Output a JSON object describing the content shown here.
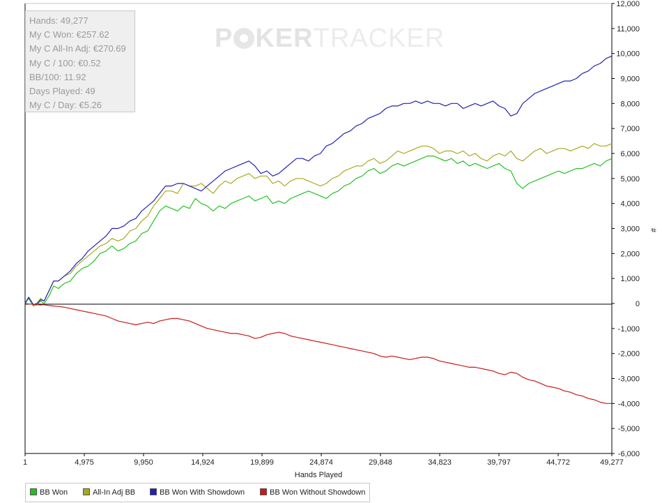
{
  "stats": {
    "hands": "Hands: 49,277",
    "my_c_won": "My C Won: €257.62",
    "my_c_allin_adj": "My C All-In Adj: €270.69",
    "my_c_per_100": "My C / 100: €0.52",
    "bb_per_100": "BB/100: 11.92",
    "days_played": "Days Played: 49",
    "my_c_per_day": "My C / Day: €5.26"
  },
  "watermark": {
    "part1": "P",
    "part2": "KER",
    "part3": "TRACKER"
  },
  "chart_data": {
    "type": "line",
    "title": "",
    "xlabel": "Hands Played",
    "ylabel": "#",
    "xlim": [
      1,
      49277
    ],
    "ylim": [
      -6000,
      12000
    ],
    "x_ticks": [
      "1",
      "4,975",
      "9,950",
      "14,924",
      "19,899",
      "24,874",
      "29,848",
      "34,823",
      "39,797",
      "44,772",
      "49,277"
    ],
    "x_tick_values": [
      1,
      4975,
      9950,
      14924,
      19899,
      24874,
      29848,
      34823,
      39797,
      44772,
      49277
    ],
    "y_ticks": [
      "12,000",
      "11,000",
      "10,000",
      "9,000",
      "8,000",
      "7,000",
      "6,000",
      "5,000",
      "4,000",
      "3,000",
      "2,000",
      "1,000",
      "0",
      "-1,000",
      "-2,000",
      "-3,000",
      "-4,000",
      "-5,000",
      "-6,000"
    ],
    "y_tick_values": [
      12000,
      11000,
      10000,
      9000,
      8000,
      7000,
      6000,
      5000,
      4000,
      3000,
      2000,
      1000,
      0,
      -1000,
      -2000,
      -3000,
      -4000,
      -5000,
      -6000
    ],
    "grid": false,
    "legend_position": "bottom-left",
    "series": [
      {
        "name": "BB Won",
        "color": "#22c022",
        "x": [
          1,
          300,
          700,
          1000,
          1300,
          1600,
          2000,
          2400,
          2800,
          3300,
          3800,
          4300,
          4800,
          5300,
          5800,
          6300,
          6800,
          7300,
          7800,
          8300,
          8800,
          9300,
          9800,
          10300,
          10800,
          11300,
          11800,
          12300,
          12800,
          13300,
          13800,
          14300,
          14800,
          15300,
          15800,
          16300,
          16800,
          17300,
          17800,
          18300,
          18800,
          19300,
          19800,
          20300,
          20800,
          21300,
          21800,
          22300,
          22800,
          23300,
          23800,
          24300,
          24800,
          25300,
          25800,
          26300,
          26800,
          27300,
          27800,
          28300,
          28800,
          29300,
          29800,
          30300,
          30800,
          31300,
          31800,
          32300,
          32800,
          33300,
          33800,
          34300,
          34800,
          35300,
          35800,
          36300,
          36800,
          37300,
          37800,
          38300,
          38800,
          39300,
          39800,
          40300,
          40800,
          41300,
          41800,
          42300,
          42800,
          43300,
          43800,
          44300,
          44800,
          45300,
          45800,
          46300,
          46800,
          47300,
          47800,
          48300,
          48800,
          49277
        ],
        "values": [
          0,
          200,
          -100,
          -50,
          100,
          0,
          300,
          700,
          600,
          800,
          900,
          1200,
          1400,
          1500,
          1700,
          2000,
          2100,
          2300,
          2100,
          2200,
          2400,
          2500,
          2800,
          2900,
          3300,
          3700,
          3900,
          3800,
          3700,
          3900,
          3800,
          4200,
          4000,
          3900,
          3700,
          3900,
          3800,
          4000,
          4100,
          4200,
          4300,
          4100,
          4200,
          4300,
          4000,
          4100,
          4000,
          4200,
          4300,
          4400,
          4500,
          4400,
          4300,
          4200,
          4400,
          4500,
          4700,
          4800,
          5000,
          5100,
          5300,
          5400,
          5200,
          5300,
          5500,
          5600,
          5500,
          5600,
          5700,
          5800,
          5900,
          5900,
          5800,
          5700,
          5800,
          5600,
          5700,
          5500,
          5600,
          5500,
          5400,
          5500,
          5600,
          5400,
          5300,
          4800,
          4600,
          4800,
          4900,
          5000,
          5100,
          5200,
          5300,
          5200,
          5300,
          5400,
          5400,
          5500,
          5600,
          5500,
          5700,
          5800
        ]
      },
      {
        "name": "All-In Adj BB",
        "color": "#a8a820",
        "x": [
          1,
          300,
          700,
          1000,
          1300,
          1600,
          2000,
          2400,
          2800,
          3300,
          3800,
          4300,
          4800,
          5300,
          5800,
          6300,
          6800,
          7300,
          7800,
          8300,
          8800,
          9300,
          9800,
          10300,
          10800,
          11300,
          11800,
          12300,
          12800,
          13300,
          13800,
          14300,
          14800,
          15300,
          15800,
          16300,
          16800,
          17300,
          17800,
          18300,
          18800,
          19300,
          19800,
          20300,
          20800,
          21300,
          21800,
          22300,
          22800,
          23300,
          23800,
          24300,
          24800,
          25300,
          25800,
          26300,
          26800,
          27300,
          27800,
          28300,
          28800,
          29300,
          29800,
          30300,
          30800,
          31300,
          31800,
          32300,
          32800,
          33300,
          33800,
          34300,
          34800,
          35300,
          35800,
          36300,
          36800,
          37300,
          37800,
          38300,
          38800,
          39300,
          39800,
          40300,
          40800,
          41300,
          41800,
          42300,
          42800,
          43300,
          43800,
          44300,
          44800,
          45300,
          45800,
          46300,
          46800,
          47300,
          47800,
          48300,
          48800,
          49277
        ],
        "values": [
          0,
          250,
          -50,
          0,
          200,
          100,
          500,
          900,
          900,
          1100,
          1200,
          1500,
          1700,
          1900,
          2100,
          2300,
          2400,
          2600,
          2500,
          2600,
          2900,
          3000,
          3300,
          3500,
          3900,
          4200,
          4500,
          4500,
          4400,
          4800,
          4700,
          4700,
          4800,
          4600,
          4400,
          4700,
          4900,
          4800,
          5000,
          5100,
          5200,
          5000,
          5100,
          5100,
          4800,
          4900,
          4700,
          4900,
          5000,
          5000,
          4900,
          4800,
          4700,
          4800,
          5000,
          5100,
          5300,
          5400,
          5500,
          5500,
          5700,
          5800,
          5600,
          5700,
          5900,
          6100,
          6000,
          6100,
          6200,
          6300,
          6300,
          6200,
          6000,
          6100,
          6100,
          6000,
          6100,
          5900,
          6000,
          5800,
          5700,
          5900,
          6000,
          5900,
          6100,
          5800,
          5700,
          5900,
          6100,
          6200,
          6000,
          6100,
          6200,
          6200,
          6100,
          6200,
          6300,
          6200,
          6400,
          6300,
          6300,
          6400
        ]
      },
      {
        "name": "BB Won With Showdown",
        "color": "#2020b8",
        "x": [
          1,
          300,
          700,
          1000,
          1300,
          1600,
          2000,
          2400,
          2800,
          3300,
          3800,
          4300,
          4800,
          5300,
          5800,
          6300,
          6800,
          7300,
          7800,
          8300,
          8800,
          9300,
          9800,
          10300,
          10800,
          11300,
          11800,
          12300,
          12800,
          13300,
          13800,
          14300,
          14800,
          15300,
          15800,
          16300,
          16800,
          17300,
          17800,
          18300,
          18800,
          19300,
          19800,
          20300,
          20800,
          21300,
          21800,
          22300,
          22800,
          23300,
          23800,
          24300,
          24800,
          25300,
          25800,
          26300,
          26800,
          27300,
          27800,
          28300,
          28800,
          29300,
          29800,
          30300,
          30800,
          31300,
          31800,
          32300,
          32800,
          33300,
          33800,
          34300,
          34800,
          35300,
          35800,
          36300,
          36800,
          37300,
          37800,
          38300,
          38800,
          39300,
          39800,
          40300,
          40800,
          41300,
          41800,
          42300,
          42800,
          43300,
          43800,
          44300,
          44800,
          45300,
          45800,
          46300,
          46800,
          47300,
          47800,
          48300,
          48800,
          49277
        ],
        "values": [
          0,
          250,
          -50,
          0,
          150,
          100,
          500,
          900,
          900,
          1100,
          1300,
          1600,
          1800,
          2100,
          2300,
          2500,
          2700,
          3000,
          3000,
          3100,
          3300,
          3400,
          3700,
          3900,
          4100,
          4400,
          4700,
          4700,
          4800,
          4800,
          4700,
          4600,
          4500,
          4700,
          4900,
          5100,
          5300,
          5400,
          5500,
          5600,
          5700,
          5500,
          5200,
          5300,
          5100,
          5200,
          5400,
          5600,
          5800,
          5800,
          5700,
          5900,
          6000,
          6300,
          6400,
          6600,
          6800,
          6900,
          7100,
          7200,
          7400,
          7500,
          7600,
          7800,
          7900,
          7900,
          8000,
          8000,
          8100,
          8000,
          8100,
          8000,
          8000,
          7900,
          8000,
          8000,
          7800,
          7900,
          8000,
          7900,
          8000,
          8100,
          7900,
          7800,
          7500,
          7600,
          8000,
          8200,
          8400,
          8500,
          8600,
          8700,
          8800,
          8900,
          8900,
          9000,
          9200,
          9300,
          9500,
          9600,
          9800,
          9900
        ]
      },
      {
        "name": "BB Won Without Showdown",
        "color": "#cc1818",
        "x": [
          1,
          300,
          700,
          1000,
          1300,
          1600,
          2000,
          2400,
          2800,
          3300,
          3800,
          4300,
          4800,
          5300,
          5800,
          6300,
          6800,
          7300,
          7800,
          8300,
          8800,
          9300,
          9800,
          10300,
          10800,
          11300,
          11800,
          12300,
          12800,
          13300,
          13800,
          14300,
          14800,
          15300,
          15800,
          16300,
          16800,
          17300,
          17800,
          18300,
          18800,
          19300,
          19800,
          20300,
          20800,
          21300,
          21800,
          22300,
          22800,
          23300,
          23800,
          24300,
          24800,
          25300,
          25800,
          26300,
          26800,
          27300,
          27800,
          28300,
          28800,
          29300,
          29800,
          30300,
          30800,
          31300,
          31800,
          32300,
          32800,
          33300,
          33800,
          34300,
          34800,
          35300,
          35800,
          36300,
          36800,
          37300,
          37800,
          38300,
          38800,
          39300,
          39800,
          40300,
          40800,
          41300,
          41800,
          42300,
          42800,
          43300,
          43800,
          44300,
          44800,
          45300,
          45800,
          46300,
          46800,
          47300,
          47800,
          48300,
          48800,
          49277
        ],
        "values": [
          0,
          -20,
          -30,
          -50,
          -60,
          -50,
          -80,
          -100,
          -120,
          -150,
          -200,
          -250,
          -300,
          -350,
          -400,
          -450,
          -500,
          -600,
          -700,
          -750,
          -800,
          -850,
          -800,
          -750,
          -800,
          -700,
          -650,
          -600,
          -600,
          -650,
          -700,
          -800,
          -900,
          -1000,
          -1050,
          -1100,
          -1150,
          -1200,
          -1200,
          -1250,
          -1300,
          -1400,
          -1350,
          -1250,
          -1200,
          -1150,
          -1200,
          -1300,
          -1350,
          -1400,
          -1450,
          -1500,
          -1550,
          -1600,
          -1650,
          -1700,
          -1750,
          -1800,
          -1850,
          -1900,
          -1950,
          -2000,
          -2100,
          -2150,
          -2100,
          -2150,
          -2200,
          -2250,
          -2200,
          -2150,
          -2150,
          -2200,
          -2300,
          -2350,
          -2400,
          -2450,
          -2500,
          -2550,
          -2550,
          -2600,
          -2650,
          -2700,
          -2800,
          -2850,
          -2750,
          -2800,
          -2950,
          -3050,
          -3100,
          -3200,
          -3300,
          -3350,
          -3400,
          -3500,
          -3550,
          -3650,
          -3700,
          -3800,
          -3850,
          -3950,
          -4000,
          -4000
        ]
      }
    ]
  }
}
